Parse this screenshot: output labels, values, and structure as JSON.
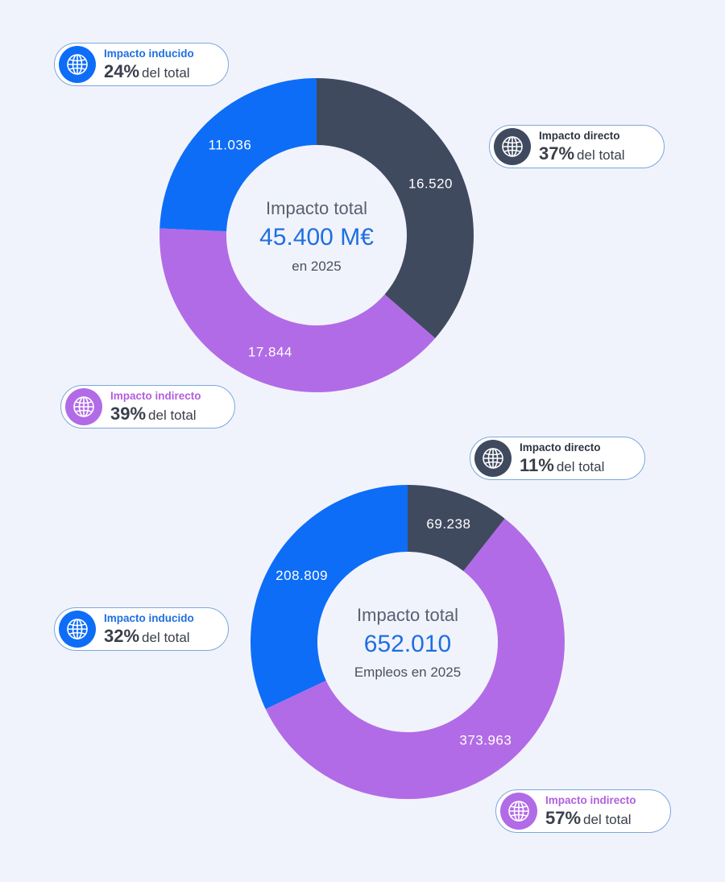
{
  "colors": {
    "directo": "#404a5f",
    "indirecto": "#b26be6",
    "inducido": "#0d6df7",
    "value_text": "#1f6fe0",
    "directo_label": "#2e3442",
    "indirecto_label": "#b25fe0",
    "inducido_label": "#1f6fe0"
  },
  "icon": "globe-icon",
  "chart_data": [
    {
      "type": "pie",
      "center": {
        "title": "Impacto total",
        "value": "45.400 M€",
        "subtitle": "en 2025"
      },
      "slices": [
        {
          "key": "directo",
          "label": "Impacto directo",
          "display_value": "16.520",
          "value": 16520,
          "pct": "37%",
          "suffix": "del total"
        },
        {
          "key": "indirecto",
          "label": "Impacto indirecto",
          "display_value": "17.844",
          "value": 17844,
          "pct": "39%",
          "suffix": "del total"
        },
        {
          "key": "inducido",
          "label": "Impacto inducido",
          "display_value": "11.036",
          "value": 11036,
          "pct": "24%",
          "suffix": "del total"
        }
      ]
    },
    {
      "type": "pie",
      "center": {
        "title": "Impacto total",
        "value": "652.010",
        "subtitle": "Empleos en 2025"
      },
      "slices": [
        {
          "key": "directo",
          "label": "Impacto directo",
          "display_value": "69.238",
          "value": 69238,
          "pct": "11%",
          "suffix": "del total"
        },
        {
          "key": "indirecto",
          "label": "Impacto indirecto",
          "display_value": "373.963",
          "value": 373963,
          "pct": "57%",
          "suffix": "del total"
        },
        {
          "key": "inducido",
          "label": "Impacto inducido",
          "display_value": "208.809",
          "value": 208809,
          "pct": "32%",
          "suffix": "del total"
        }
      ]
    }
  ]
}
